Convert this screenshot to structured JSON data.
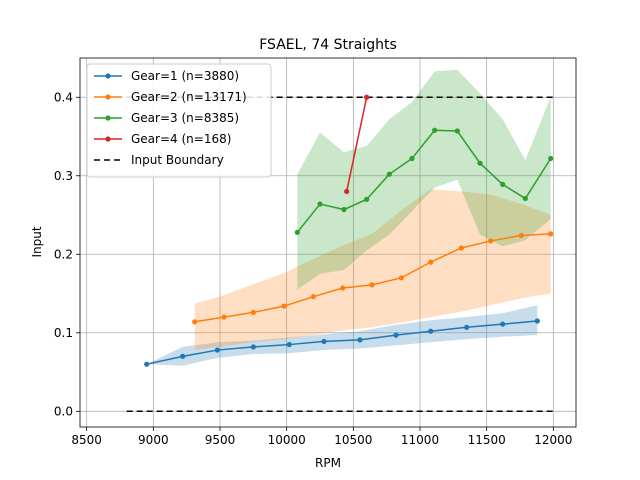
{
  "chart_data": {
    "type": "line",
    "title": "FSAEL, 74 Straights",
    "xlabel": "RPM",
    "ylabel": "Input",
    "xlim": [
      8450,
      12170
    ],
    "ylim": [
      -0.02,
      0.45
    ],
    "xticks": [
      8500,
      9000,
      9500,
      10000,
      10500,
      11000,
      11500,
      12000
    ],
    "yticks": [
      0.0,
      0.1,
      0.2,
      0.3,
      0.4
    ],
    "ytick_labels": [
      "0.0",
      "0.1",
      "0.2",
      "0.3",
      "0.4"
    ],
    "grid": true,
    "legend_position": "upper-left",
    "series": [
      {
        "name": "Gear=1 (n=3880)",
        "color": "#1f77b4",
        "x": [
          8950,
          9220,
          9480,
          9750,
          10020,
          10280,
          10550,
          10820,
          11080,
          11350,
          11620,
          11880
        ],
        "y": [
          0.06,
          0.07,
          0.078,
          0.082,
          0.085,
          0.089,
          0.091,
          0.097,
          0.102,
          0.107,
          0.111,
          0.115
        ],
        "band_low": [
          0.06,
          0.058,
          0.068,
          0.073,
          0.074,
          0.078,
          0.08,
          0.084,
          0.088,
          0.092,
          0.095,
          0.097
        ],
        "band_high": [
          0.06,
          0.082,
          0.088,
          0.09,
          0.094,
          0.098,
          0.102,
          0.11,
          0.116,
          0.12,
          0.125,
          0.135
        ]
      },
      {
        "name": "Gear=2 (n=13171)",
        "color": "#ff7f0e",
        "x": [
          9310,
          9530,
          9750,
          9980,
          10200,
          10420,
          10640,
          10860,
          11080,
          11310,
          11530,
          11760,
          11980
        ],
        "y": [
          0.114,
          0.12,
          0.126,
          0.134,
          0.146,
          0.157,
          0.161,
          0.17,
          0.19,
          0.208,
          0.217,
          0.224,
          0.226
        ],
        "band_low": [
          0.078,
          0.083,
          0.088,
          0.092,
          0.097,
          0.103,
          0.107,
          0.113,
          0.12,
          0.127,
          0.135,
          0.144,
          0.15
        ],
        "band_high": [
          0.137,
          0.148,
          0.162,
          0.176,
          0.194,
          0.211,
          0.226,
          0.256,
          0.283,
          0.28,
          0.276,
          0.264,
          0.25
        ]
      },
      {
        "name": "Gear=3 (n=8385)",
        "color": "#2ca02c",
        "x": [
          10080,
          10250,
          10430,
          10600,
          10770,
          10940,
          11110,
          11280,
          11450,
          11620,
          11790,
          11980
        ],
        "y": [
          0.228,
          0.264,
          0.257,
          0.27,
          0.302,
          0.322,
          0.358,
          0.357,
          0.316,
          0.289,
          0.271,
          0.322
        ],
        "band_low": [
          0.155,
          0.175,
          0.18,
          0.205,
          0.225,
          0.255,
          0.285,
          0.295,
          0.225,
          0.21,
          0.218,
          0.245
        ],
        "band_high": [
          0.302,
          0.355,
          0.33,
          0.338,
          0.372,
          0.394,
          0.433,
          0.435,
          0.405,
          0.372,
          0.32,
          0.4
        ]
      },
      {
        "name": "Gear=4 (n=168)",
        "color": "#d62728",
        "x": [
          10450,
          10600
        ],
        "y": [
          0.28,
          0.4
        ]
      }
    ],
    "boundary": {
      "name": "Input Boundary",
      "color": "#000000",
      "x_range": [
        8800,
        12000
      ],
      "levels": [
        0.0,
        0.4
      ]
    }
  }
}
